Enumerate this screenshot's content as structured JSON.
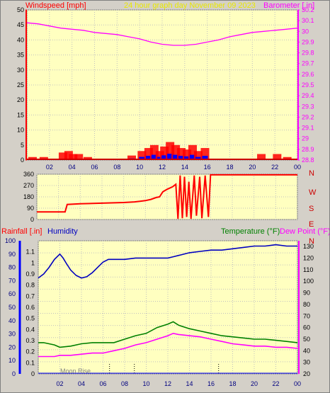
{
  "header": {
    "left_label": "Windspeed [mph]",
    "center_label": "24 hour graph day   November 09 2023",
    "right_label": "Barometer [.in]"
  },
  "colors": {
    "background": "#d4d0c8",
    "plot_bg": "#ffffc0",
    "grid": "#c0c0c0",
    "wind": "#ff0000",
    "gust_dark": "#cc0000",
    "wind_blue": "#0000ff",
    "barometer": "#ff00ff",
    "direction": "#ff0000",
    "humidity": "#0000c0",
    "temperature": "#008000",
    "dew_point": "#ff00ff",
    "rain_axis": "#0000ff",
    "header_center": "#e8e800"
  },
  "x_ticks": [
    "02",
    "04",
    "06",
    "08",
    "10",
    "12",
    "14",
    "16",
    "18",
    "20",
    "22",
    "00"
  ],
  "chart_data": [
    {
      "type": "line",
      "panel": "wind_barometer",
      "xlim": [
        0,
        24
      ],
      "left_axis": {
        "label": "Windspeed [mph]",
        "ylim": [
          0,
          50
        ],
        "ticks": [
          0,
          5,
          10,
          15,
          20,
          25,
          30,
          35,
          40,
          45,
          50
        ]
      },
      "right_axis": {
        "label": "Barometer [.in]",
        "ylim": [
          28.8,
          30.2
        ],
        "ticks": [
          "28.8",
          "28.9",
          "29",
          "29.1",
          "29.2",
          "29.3",
          "29.4",
          "29.5",
          "29.6",
          "29.7",
          "29.8",
          "29.9",
          "30",
          "30.1",
          "30.2"
        ]
      },
      "barometer": {
        "x": [
          0,
          1,
          2,
          3,
          4,
          5,
          6,
          7,
          8,
          9,
          10,
          11,
          12,
          13,
          14,
          15,
          16,
          17,
          18,
          19,
          20,
          21,
          22,
          23,
          24
        ],
        "y": [
          30.08,
          30.07,
          30.05,
          30.03,
          30.02,
          30.01,
          29.99,
          29.98,
          29.97,
          29.95,
          29.93,
          29.9,
          29.88,
          29.87,
          29.87,
          29.88,
          29.9,
          29.92,
          29.95,
          29.97,
          29.99,
          30.0,
          30.01,
          30.02,
          30.03
        ]
      },
      "wind_activity": [
        {
          "x": 0.5,
          "v": 1
        },
        {
          "x": 1.5,
          "v": 1
        },
        {
          "x": 3.2,
          "v": 2.5
        },
        {
          "x": 3.7,
          "v": 3
        },
        {
          "x": 4.1,
          "v": 2
        },
        {
          "x": 4.6,
          "v": 2
        },
        {
          "x": 5.4,
          "v": 1
        },
        {
          "x": 9.3,
          "v": 1.5
        },
        {
          "x": 10.2,
          "v": 3
        },
        {
          "x": 10.8,
          "v": 4
        },
        {
          "x": 11.3,
          "v": 5
        },
        {
          "x": 11.8,
          "v": 3
        },
        {
          "x": 12.2,
          "v": 4.5
        },
        {
          "x": 12.7,
          "v": 6
        },
        {
          "x": 13.2,
          "v": 5
        },
        {
          "x": 13.7,
          "v": 4
        },
        {
          "x": 14.2,
          "v": 3.5
        },
        {
          "x": 14.7,
          "v": 5
        },
        {
          "x": 15.2,
          "v": 3
        },
        {
          "x": 15.8,
          "v": 4
        },
        {
          "x": 20.8,
          "v": 2
        },
        {
          "x": 22.2,
          "v": 2
        },
        {
          "x": 23.1,
          "v": 1
        }
      ]
    },
    {
      "type": "line",
      "panel": "wind_direction",
      "xlim": [
        0,
        24
      ],
      "left_axis": {
        "ylim": [
          0,
          360
        ],
        "ticks": [
          0,
          90,
          180,
          270,
          360
        ]
      },
      "right_labels": [
        "N",
        "W",
        "S",
        "E",
        "N"
      ],
      "direction": {
        "x": [
          0,
          2.6,
          2.8,
          4,
          6,
          8,
          9,
          9.5,
          10,
          10.5,
          11,
          11.3,
          11.6,
          12,
          12.5,
          12.8,
          13,
          13.2,
          13.4,
          13.6,
          13.8,
          14,
          14.2,
          14.5,
          14.7,
          15,
          15.2,
          15.5,
          15.8,
          16,
          16.2,
          24
        ],
        "y": [
          60,
          60,
          120,
          125,
          130,
          135,
          140,
          145,
          150,
          160,
          175,
          180,
          220,
          240,
          260,
          280,
          5,
          350,
          10,
          340,
          20,
          300,
          5,
          350,
          30,
          340,
          10,
          350,
          20,
          355,
          355,
          355
        ]
      }
    },
    {
      "type": "line",
      "panel": "humidity_temperature",
      "xlim": [
        0,
        24
      ],
      "left_axis": {
        "label": "Rainfall [.in]",
        "ylim": [
          0,
          1.2
        ],
        "ticks": [
          "0",
          "0.1",
          "0.2",
          "0.3",
          "0.4",
          "0.5",
          "0.6",
          "0.7",
          "0.8",
          "0.9",
          "1",
          "1.1"
        ]
      },
      "humidity_axis": {
        "label": "Humidity",
        "ylim": [
          0,
          100
        ],
        "ticks": [
          0,
          10,
          20,
          30,
          40,
          50,
          60,
          70,
          80,
          90,
          100
        ]
      },
      "right_axis": {
        "label": "Temperature (°F)",
        "label2": "Dew Point (°F)",
        "ylim": [
          20,
          135
        ],
        "ticks": [
          20,
          30,
          40,
          50,
          60,
          70,
          80,
          90,
          100,
          110,
          120,
          130
        ]
      },
      "annotation": "Moon Rise",
      "humidity": {
        "x": [
          0,
          0.5,
          1,
          1.5,
          2,
          2.3,
          2.6,
          3,
          3.5,
          4,
          4.5,
          5,
          5.5,
          6,
          6.5,
          7,
          8,
          9,
          10,
          11,
          12,
          12.5,
          13,
          14,
          15,
          16,
          17,
          18,
          19,
          20,
          21,
          22,
          23,
          24
        ],
        "y": [
          72,
          75,
          80,
          86,
          90,
          87,
          83,
          78,
          74,
          72,
          73,
          76,
          80,
          84,
          86,
          86,
          86,
          87,
          87,
          87,
          87,
          88,
          89,
          91,
          92,
          93,
          93,
          94,
          95,
          96,
          96,
          97,
          96,
          96
        ]
      },
      "temperature": {
        "x": [
          0,
          0.5,
          1,
          1.5,
          2,
          3,
          4,
          5,
          6,
          7,
          8,
          9,
          10,
          11,
          12,
          12.5,
          13,
          14,
          15,
          16,
          17,
          18,
          19,
          20,
          21,
          22,
          23,
          24
        ],
        "y": [
          47,
          47,
          46,
          45,
          43,
          44,
          46,
          47,
          47,
          47,
          50,
          53,
          55,
          60,
          63,
          65,
          62,
          59,
          57,
          55,
          53,
          52,
          51,
          50,
          50,
          49,
          48,
          47
        ]
      },
      "dew_point": {
        "x": [
          0,
          0.5,
          1,
          1.5,
          2,
          3,
          4,
          5,
          6,
          7,
          8,
          9,
          10,
          11,
          12,
          12.5,
          13,
          14,
          15,
          16,
          17,
          18,
          19,
          20,
          21,
          22,
          23,
          24
        ],
        "y": [
          35,
          35,
          35,
          35,
          36,
          36,
          37,
          38,
          38,
          40,
          42,
          45,
          47,
          50,
          53,
          55,
          54,
          53,
          52,
          50,
          48,
          46,
          45,
          44,
          44,
          43,
          43,
          42
        ]
      },
      "event_markers": [
        6.6,
        8.9,
        16.7
      ]
    }
  ]
}
